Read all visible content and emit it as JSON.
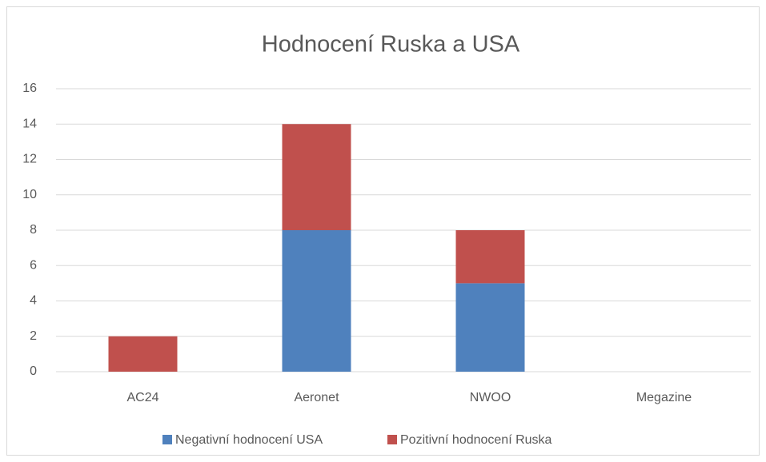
{
  "chart_data": {
    "type": "stacked_bar",
    "title": "Hodnocení Ruska a USA",
    "categories": [
      "AC24",
      "Aeronet",
      "NWOO",
      "Megazine"
    ],
    "series": [
      {
        "name": "Negativní hodnocení USA",
        "color": "#4f81bd",
        "values": [
          0,
          8,
          5,
          0
        ]
      },
      {
        "name": "Pozitivní hodnocení Ruska",
        "color": "#c0504d",
        "values": [
          2,
          6,
          3,
          0
        ]
      }
    ],
    "ylim": [
      0,
      16
    ],
    "yticks": [
      0,
      2,
      4,
      6,
      8,
      10,
      12,
      14,
      16
    ],
    "grid": true,
    "legend": "bottom"
  }
}
